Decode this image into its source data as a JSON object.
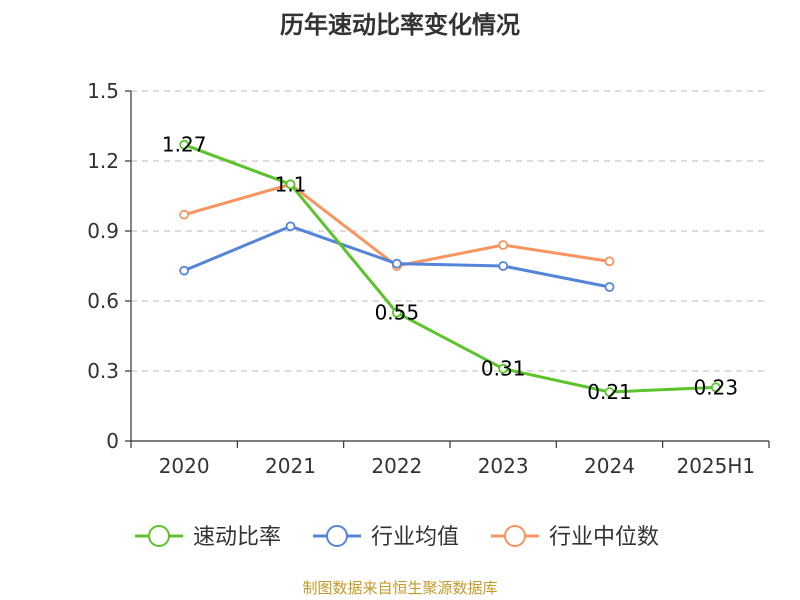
{
  "chart_data": {
    "type": "line",
    "title": "历年速动比率变化情况",
    "categories": [
      "2020",
      "2021",
      "2022",
      "2023",
      "2024",
      "2025H1"
    ],
    "ylim": [
      0,
      1.5
    ],
    "yticks": [
      "0",
      "0.3",
      "0.6",
      "0.9",
      "1.2",
      "1.5"
    ],
    "grid": true,
    "legend_position": "bottom",
    "series": [
      {
        "name": "速动比率",
        "color": "#5cc42a",
        "values": [
          1.27,
          1.1,
          0.55,
          0.31,
          0.21,
          0.23
        ],
        "labels": [
          "1.27",
          "1.1",
          "0.55",
          "0.31",
          "0.21",
          "0.23"
        ]
      },
      {
        "name": "行业均值",
        "color": "#5585d9",
        "values": [
          0.73,
          0.92,
          0.76,
          0.75,
          0.66,
          null
        ]
      },
      {
        "name": "行业中位数",
        "color": "#f79460",
        "values": [
          0.97,
          1.1,
          0.75,
          0.84,
          0.77,
          null
        ]
      }
    ],
    "source": "制图数据来自恒生聚源数据库"
  }
}
